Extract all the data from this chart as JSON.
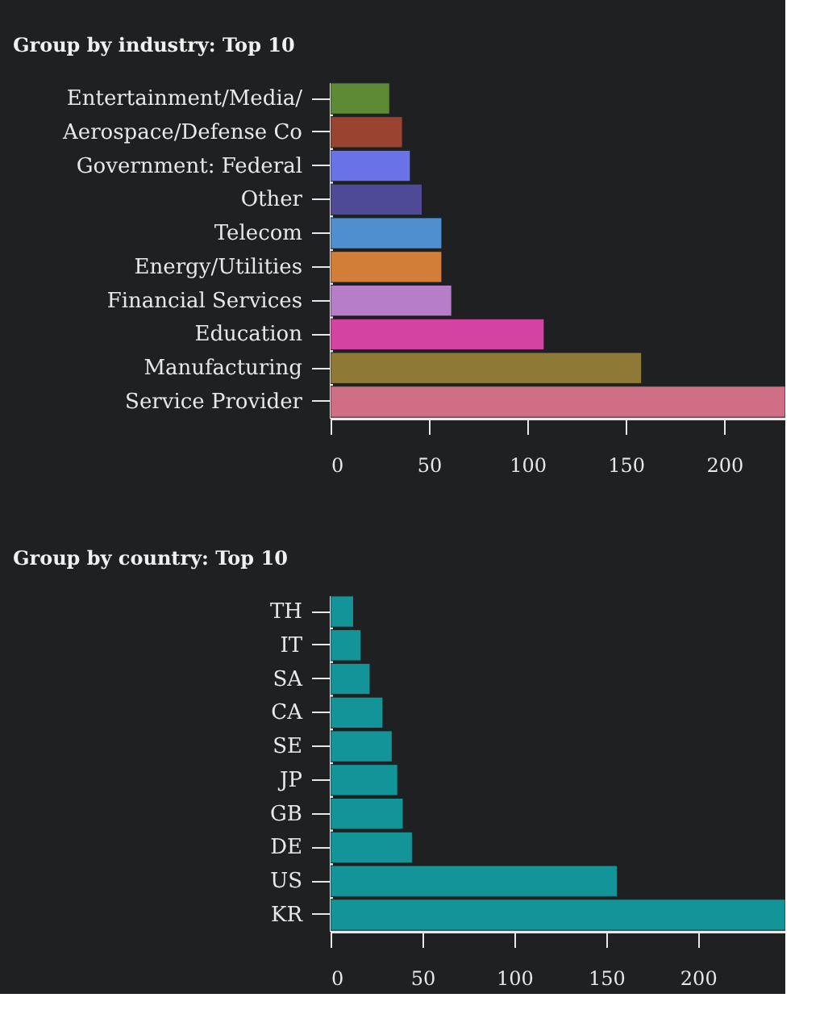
{
  "chart_data": [
    {
      "type": "bar",
      "orientation": "horizontal",
      "title": "Group by industry: Top 10",
      "categories": [
        "Entertainment/Media/",
        "Aerospace/Defense Co",
        "Government: Federal",
        "Other",
        "Telecom",
        "Energy/Utilities",
        "Financial Services",
        "Education",
        "Manufacturing",
        "Service Provider"
      ],
      "values": [
        30,
        36.5,
        40.5,
        46.5,
        56.5,
        56.5,
        61.5,
        108.5,
        158,
        231
      ],
      "colors": [
        "#5f8a35",
        "#9a4330",
        "#6a72e8",
        "#4f4a96",
        "#4f8fd0",
        "#d27e38",
        "#b57ec6",
        "#d443a1",
        "#8e7a36",
        "#cf6e85"
      ],
      "xlim": [
        0,
        231
      ],
      "xticks": [
        0,
        50,
        100,
        150,
        200
      ],
      "grid": false
    },
    {
      "type": "bar",
      "orientation": "horizontal",
      "title": "Group by country: Top 10",
      "categories": [
        "TH",
        "IT",
        "SA",
        "CA",
        "SE",
        "JP",
        "GB",
        "DE",
        "US",
        "KR"
      ],
      "values": [
        12.5,
        16.5,
        21.5,
        28.5,
        33.5,
        36.5,
        39.5,
        44.5,
        156,
        247.5
      ],
      "color": "#139499",
      "xlim": [
        0,
        247.5
      ],
      "xticks": [
        0,
        50,
        100,
        150,
        200
      ],
      "grid": false
    }
  ]
}
